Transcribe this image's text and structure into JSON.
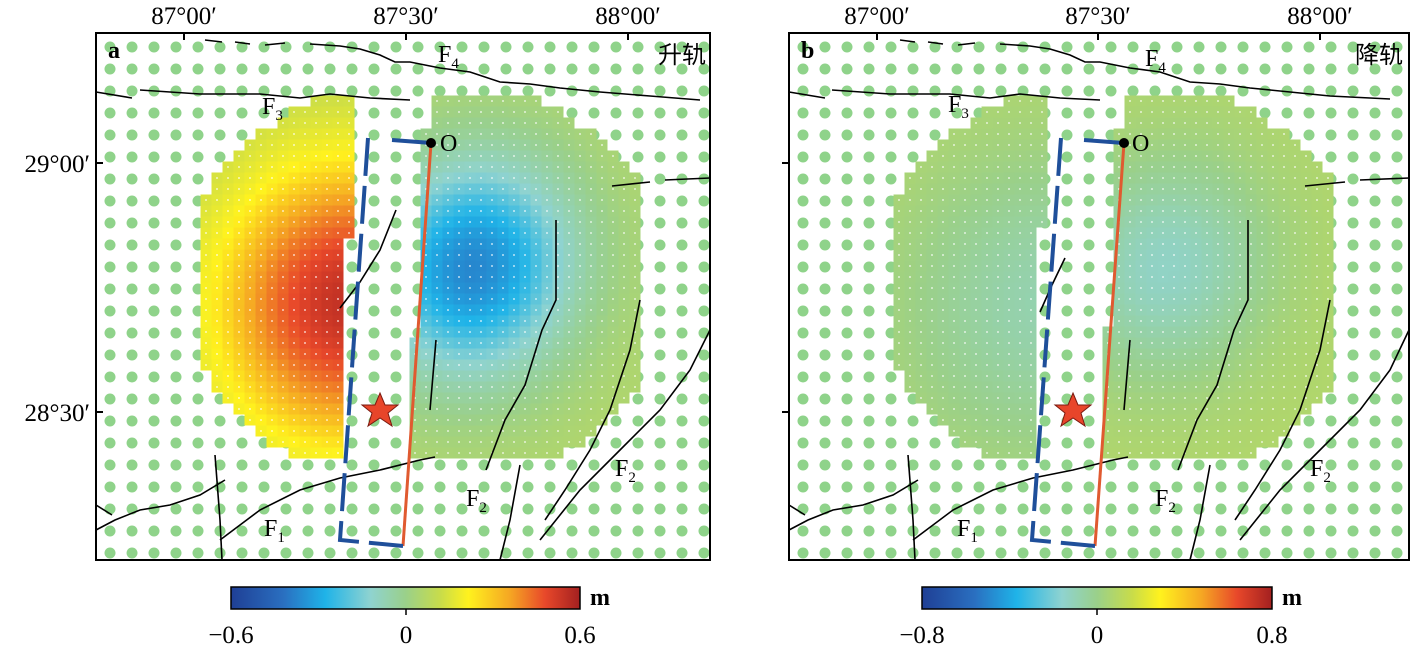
{
  "panels": [
    {
      "id": "a",
      "letter": "a",
      "orbit": "升轨",
      "x_ticks": [
        "87°00′",
        "87°30′",
        "88°00′"
      ],
      "y_ticks": [
        "29°00′",
        "28°30′"
      ],
      "colorbar": {
        "min": "−0.6",
        "mid": "0",
        "max": "0.6",
        "unit": "m"
      },
      "origin_label": "O",
      "faults": [
        {
          "name": "F",
          "sub": "4"
        },
        {
          "name": "F",
          "sub": "3"
        },
        {
          "name": "F",
          "sub": "1"
        },
        {
          "name": "F",
          "sub": "2"
        },
        {
          "name": "F",
          "sub": "2"
        }
      ]
    },
    {
      "id": "b",
      "letter": "b",
      "orbit": "降轨",
      "x_ticks": [
        "87°00′",
        "87°30′",
        "88°00′"
      ],
      "y_ticks": [],
      "colorbar": {
        "min": "−0.8",
        "mid": "0",
        "max": "0.8",
        "unit": "m"
      },
      "origin_label": "O",
      "faults": [
        {
          "name": "F",
          "sub": "4"
        },
        {
          "name": "F",
          "sub": "3"
        },
        {
          "name": "F",
          "sub": "1"
        },
        {
          "name": "F",
          "sub": "2"
        },
        {
          "name": "F",
          "sub": "2"
        }
      ]
    }
  ],
  "colormap": [
    "#1f3f95",
    "#2a6fc0",
    "#1fb3e8",
    "#8fd3d0",
    "#9ad08a",
    "#c8dc4a",
    "#fff21e",
    "#f5a623",
    "#e8482a",
    "#a32020"
  ],
  "point_color": "#8fd38a",
  "fault_color": "#000000",
  "model_fault_color": "#e05a30",
  "dashed_fault_color": "#1f4f9a",
  "epicenter_color": "#e8452a"
}
